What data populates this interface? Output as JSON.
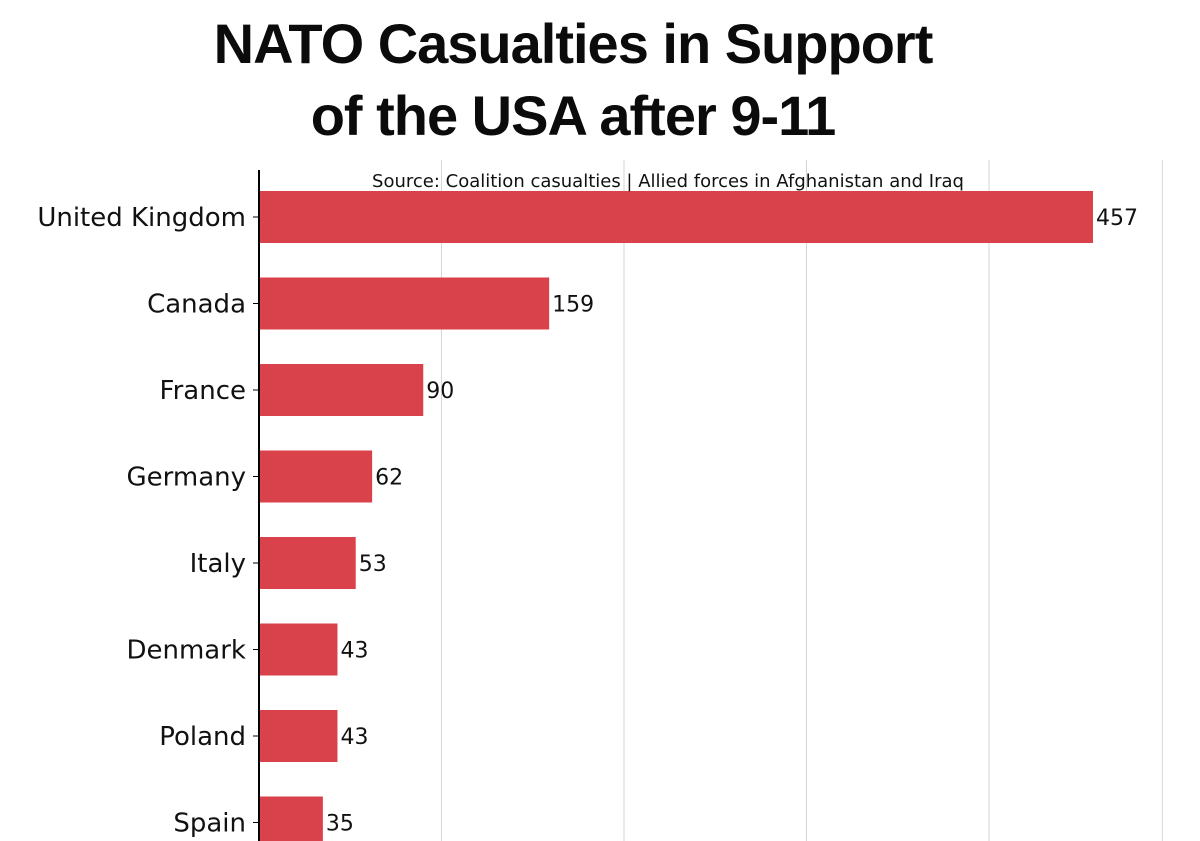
{
  "chart_data": {
    "type": "bar",
    "orientation": "horizontal",
    "title_lines": [
      "NATO Casualties in Support",
      "of the USA after 9-11"
    ],
    "subtitle": "Source: Coalition casualties | Allied forces in Afghanistan and Iraq",
    "categories": [
      "United Kingdom",
      "Canada",
      "France",
      "Germany",
      "Italy",
      "Denmark",
      "Poland",
      "Spain"
    ],
    "values": [
      457,
      159,
      90,
      62,
      53,
      43,
      43,
      35
    ],
    "xlim": [
      0,
      495
    ],
    "x_gridlines": [
      100,
      200,
      300,
      400,
      495
    ],
    "grid": true,
    "bar_color": "#d9424a",
    "grid_color": "#d6d6d6",
    "axis_color": "#000000"
  }
}
